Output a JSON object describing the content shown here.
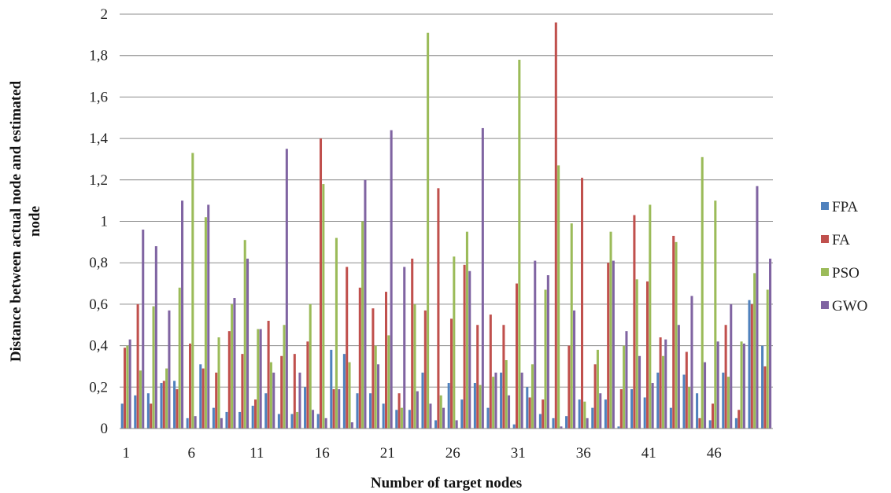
{
  "chart_data": {
    "type": "bar",
    "title": "",
    "xlabel": "Number of target nodes",
    "ylabel_lines": [
      "Distance between actual node and estimated",
      "node"
    ],
    "ylim": [
      0,
      2
    ],
    "yticks": [
      "0",
      "0,2",
      "0,4",
      "0,6",
      "0,8",
      "1",
      "1,2",
      "1,4",
      "1,6",
      "1,8",
      "2"
    ],
    "xtick_labels": [
      "1",
      "6",
      "11",
      "16",
      "21",
      "26",
      "31",
      "36",
      "41",
      "46"
    ],
    "xtick_positions": [
      1,
      6,
      11,
      16,
      21,
      26,
      31,
      36,
      41,
      46
    ],
    "grid": true,
    "legend_position": "right",
    "categories": [
      1,
      2,
      3,
      4,
      5,
      6,
      7,
      8,
      9,
      10,
      11,
      12,
      13,
      14,
      15,
      16,
      17,
      18,
      19,
      20,
      21,
      22,
      23,
      24,
      25,
      26,
      27,
      28,
      29,
      30,
      31,
      32,
      33,
      34,
      35,
      36,
      37,
      38,
      39,
      40,
      41,
      42,
      43,
      44,
      45,
      46,
      47,
      48,
      49,
      50
    ],
    "series": [
      {
        "name": "FPA",
        "color": "#4f81bd",
        "values": [
          0.12,
          0.16,
          0.17,
          0.22,
          0.23,
          0.05,
          0.31,
          0.1,
          0.08,
          0.08,
          0.11,
          0.17,
          0.07,
          0.07,
          0.2,
          0.07,
          0.38,
          0.36,
          0.17,
          0.17,
          0.12,
          0.09,
          0.09,
          0.27,
          0.04,
          0.22,
          0.14,
          0.22,
          0.1,
          0.27,
          0.02,
          0.2,
          0.07,
          0.05,
          0.06,
          0.14,
          0.1,
          0.14,
          0.01,
          0.19,
          0.15,
          0.27,
          0.1,
          0.26,
          0.17,
          0.04,
          0.27,
          0.05,
          0.62,
          0.4
        ]
      },
      {
        "name": "FA",
        "color": "#c0504d",
        "values": [
          0.39,
          0.6,
          0.12,
          0.23,
          0.19,
          0.41,
          0.29,
          0.27,
          0.47,
          0.36,
          0.14,
          0.52,
          0.35,
          0.36,
          0.42,
          1.4,
          0.19,
          0.78,
          0.68,
          0.58,
          0.66,
          0.17,
          0.82,
          0.57,
          1.16,
          0.53,
          0.79,
          0.5,
          0.55,
          0.5,
          0.7,
          0.15,
          0.14,
          1.96,
          0.4,
          1.21,
          0.31,
          0.8,
          0.19,
          1.03,
          0.71,
          0.44,
          0.93,
          0.37,
          0.05,
          0.12,
          0.5,
          0.09,
          0.6,
          0.3
        ]
      },
      {
        "name": "PSO",
        "color": "#9bbb59",
        "values": [
          0.4,
          0.28,
          0.59,
          0.29,
          0.68,
          1.33,
          1.02,
          0.44,
          0.6,
          0.91,
          0.48,
          0.32,
          0.5,
          0.08,
          0.6,
          1.18,
          0.92,
          0.32,
          1.0,
          0.4,
          0.45,
          0.1,
          0.6,
          1.91,
          0.16,
          0.83,
          0.95,
          0.21,
          0.25,
          0.33,
          1.78,
          0.31,
          0.67,
          1.27,
          0.99,
          0.13,
          0.38,
          0.95,
          0.4,
          0.72,
          1.08,
          0.35,
          0.9,
          0.2,
          1.31,
          1.1,
          0.25,
          0.42,
          0.75,
          0.67
        ]
      },
      {
        "name": "GWO",
        "color": "#8064a2",
        "values": [
          0.43,
          0.96,
          0.88,
          0.57,
          1.1,
          0.06,
          1.08,
          0.05,
          0.63,
          0.82,
          0.48,
          0.27,
          1.35,
          0.27,
          0.09,
          0.05,
          0.19,
          0.03,
          1.2,
          0.31,
          1.44,
          0.78,
          0.18,
          0.12,
          0.1,
          0.04,
          0.76,
          1.45,
          0.27,
          0.16,
          0.27,
          0.81,
          0.74,
          0.01,
          0.57,
          0.05,
          0.17,
          0.81,
          0.47,
          0.35,
          0.22,
          0.43,
          0.5,
          0.64,
          0.32,
          0.42,
          0.6,
          0.41,
          1.17,
          0.82
        ]
      }
    ]
  }
}
